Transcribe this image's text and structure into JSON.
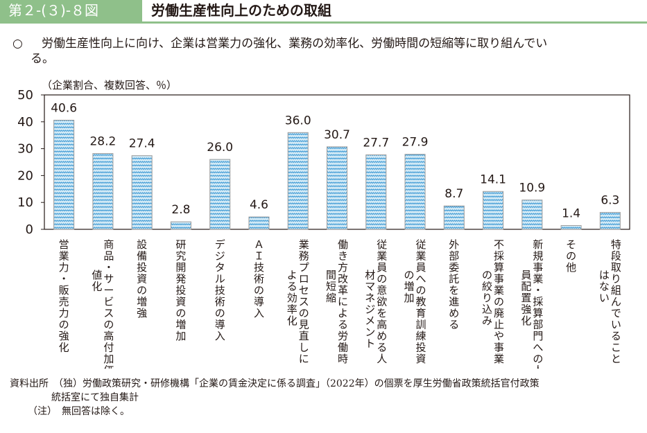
{
  "figure": {
    "number": "第２-(３)-８図",
    "title": "労働生産性向上のための取組"
  },
  "summary": {
    "bullet": "○",
    "text_line1": "労働生産性向上に向け、企業は営業力の強化、業務の効率化、労働時間の短縮等に取り組んでい",
    "text_line2": "る。"
  },
  "colors": {
    "header_band": "#8fc08a",
    "bar_fill": "#cfe8f5",
    "bar_pattern": "#2a8fd0",
    "bar_edge": "#9a9a9a",
    "axis": "#231815"
  },
  "chart_data": {
    "type": "bar",
    "title": "",
    "unit_label": "（企業割合、複数回答、％）",
    "xlabel": "",
    "ylabel": "",
    "ylim": [
      0,
      50
    ],
    "yticks": [
      0,
      10,
      20,
      30,
      40,
      50
    ],
    "grid": false,
    "legend": "none",
    "categories": [
      [
        "営業力・販売力の強化"
      ],
      [
        "商品・サービスの高付加価",
        "値化"
      ],
      [
        "設備投資の増強"
      ],
      [
        "研究開発投資の増加"
      ],
      [
        "デジタル技術の導入"
      ],
      [
        "ＡＩ技術の導入"
      ],
      [
        "業務プロセスの見直しに",
        "よる効率化"
      ],
      [
        "働き方改革による労働時",
        "間短縮"
      ],
      [
        "従業員の意欲を高める人",
        "材マネジメント"
      ],
      [
        "従業員への教育訓練投資",
        "の増加"
      ],
      [
        "外部委託を進める"
      ],
      [
        "不採算事業の廃止や事業",
        "の絞り込み"
      ],
      [
        "新規事業・採算部門への人",
        "員配置強化"
      ],
      [
        "その他"
      ],
      [
        "特段取り組んでいること",
        "はない"
      ]
    ],
    "values": [
      40.6,
      28.2,
      27.4,
      2.8,
      26.0,
      4.6,
      36.0,
      30.7,
      27.7,
      27.9,
      8.7,
      14.1,
      10.9,
      1.4,
      6.3
    ],
    "value_labels": [
      "40.6",
      "28.2",
      "27.4",
      "2.8",
      "26.0",
      "4.6",
      "36.0",
      "30.7",
      "27.7",
      "27.9",
      "8.7",
      "14.1",
      "10.9",
      "1.4",
      "6.3"
    ]
  },
  "footer": {
    "source_line1": "資料出所　（独）労働政策研究・研修機構「企業の賃金決定に係る調査」（2022年）の個票を厚生労働省政策統括官付政策",
    "source_line2": "統括室にて独自集計",
    "note": "（注）　無回答は除く。"
  }
}
